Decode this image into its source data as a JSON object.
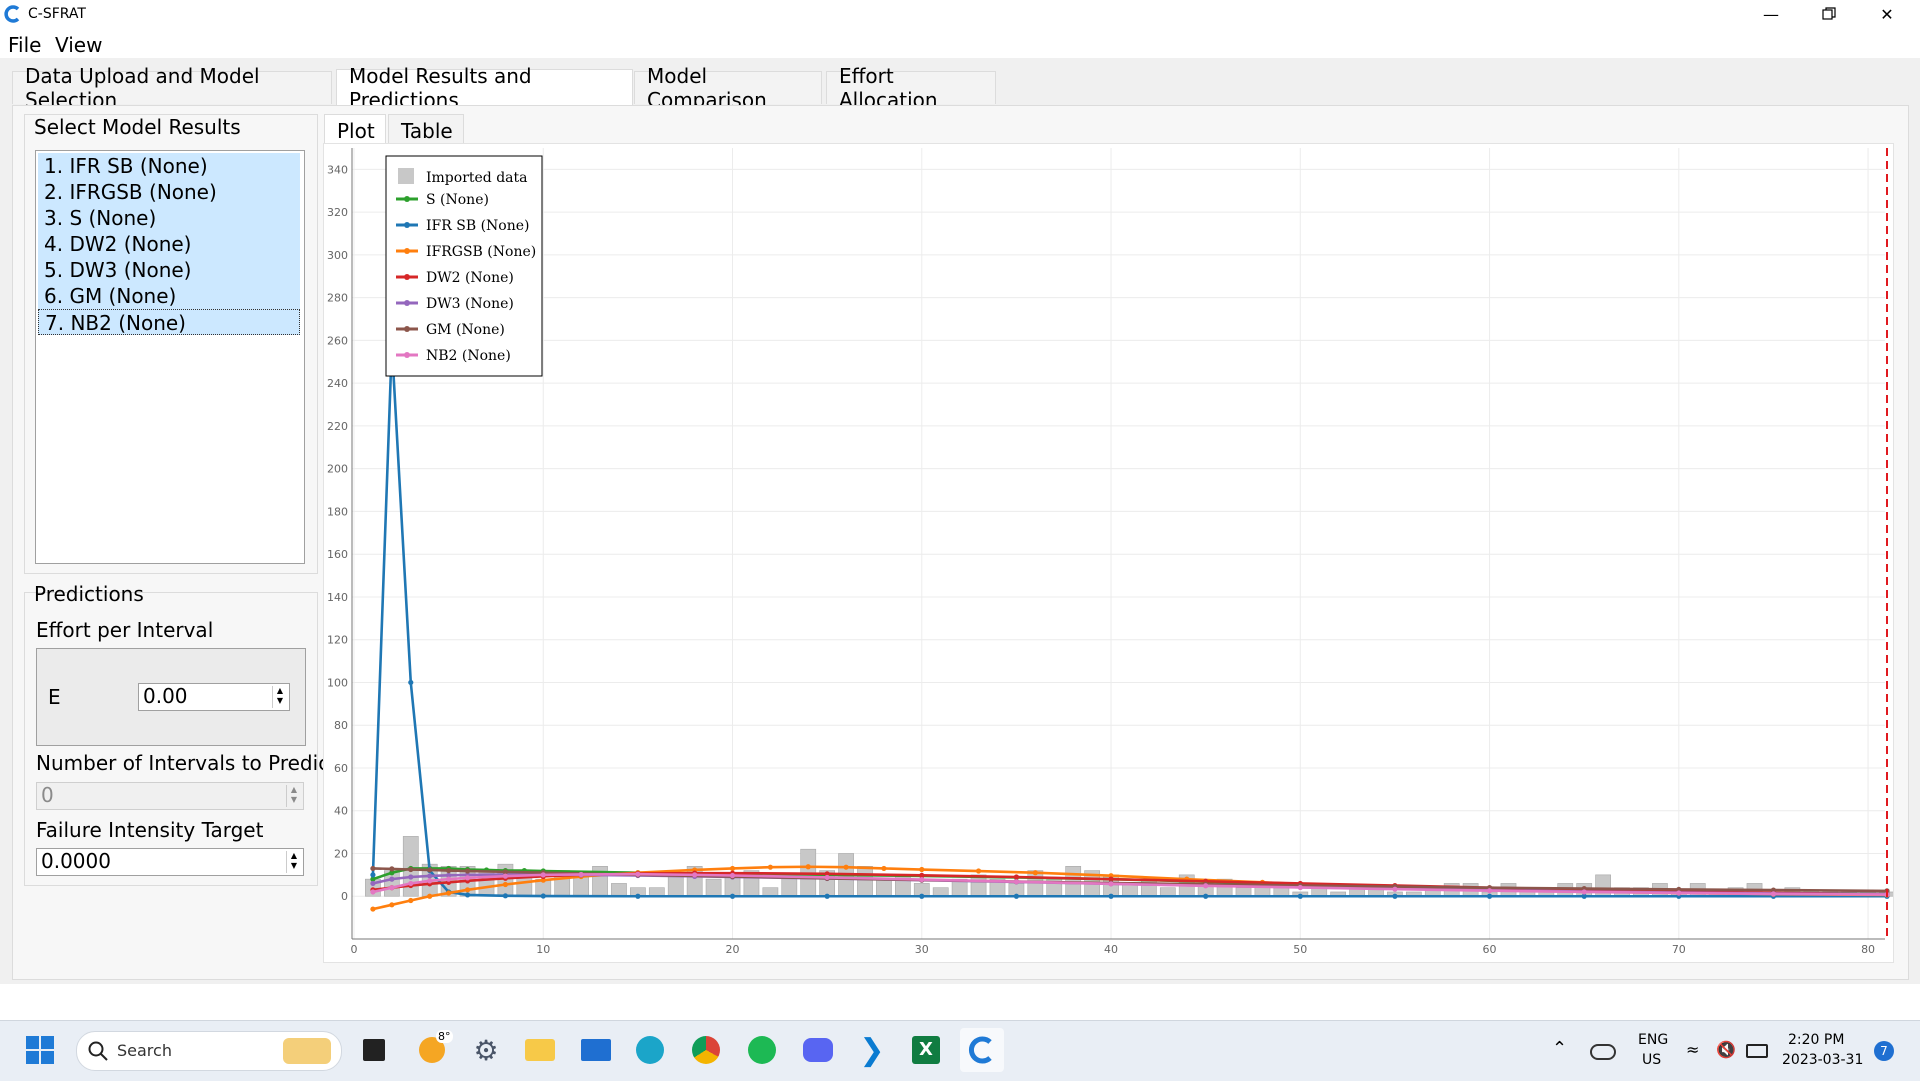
{
  "window": {
    "title": "C-SFRAT",
    "controls": [
      "minimize-icon",
      "restore-icon",
      "close-icon"
    ]
  },
  "menu": [
    "File",
    "View"
  ],
  "main_tabs": [
    {
      "label": "Data Upload and Model Selection",
      "active": false
    },
    {
      "label": "Model Results and Predictions",
      "active": true
    },
    {
      "label": "Model Comparison",
      "active": false
    },
    {
      "label": "Effort Allocation",
      "active": false
    }
  ],
  "select_model_results": {
    "title": "Select Model Results",
    "items": [
      "1. IFR SB (None)",
      "2. IFRGSB (None)",
      "3. S (None)",
      "4. DW2 (None)",
      "5. DW3 (None)",
      "6. GM (None)",
      "7. NB2 (None)"
    ]
  },
  "predictions": {
    "title": "Predictions",
    "effort_label": "Effort per Interval",
    "e_label": "E",
    "e_value": "0.00",
    "intervals_label": "Number of Intervals to Predict",
    "intervals_value": "0",
    "intensity_label": "Failure Intensity Target",
    "intensity_value": "0.0000"
  },
  "sub_tabs": [
    {
      "label": "Plot",
      "active": true
    },
    {
      "label": "Table",
      "active": false
    }
  ],
  "chart_data": {
    "type": "line",
    "xlim": [
      0,
      81
    ],
    "ylim": [
      -20,
      350
    ],
    "x_ticks": [
      0,
      10,
      20,
      30,
      40,
      50,
      60,
      70,
      80
    ],
    "y_ticks": [
      0,
      20,
      40,
      60,
      80,
      100,
      120,
      140,
      160,
      180,
      200,
      220,
      240,
      260,
      280,
      300,
      320,
      340
    ],
    "grid": true,
    "legend_position": "top-left",
    "vertical_marker_x": 81,
    "bars": {
      "name": "Imported data",
      "color": "#c8c8c8",
      "x": [
        1,
        2,
        3,
        4,
        5,
        6,
        7,
        8,
        9,
        10,
        11,
        12,
        13,
        14,
        15,
        16,
        17,
        18,
        19,
        20,
        21,
        22,
        23,
        24,
        25,
        26,
        27,
        28,
        29,
        30,
        31,
        32,
        33,
        34,
        35,
        36,
        37,
        38,
        39,
        40,
        41,
        42,
        43,
        44,
        45,
        46,
        47,
        48,
        49,
        50,
        51,
        52,
        53,
        54,
        55,
        56,
        57,
        58,
        59,
        60,
        61,
        62,
        63,
        64,
        65,
        66,
        67,
        68,
        69,
        70,
        71,
        72,
        73,
        74,
        75,
        76,
        77,
        78,
        79,
        80,
        81
      ],
      "values": [
        8,
        12,
        28,
        15,
        14,
        14,
        12,
        15,
        10,
        8,
        12,
        10,
        14,
        6,
        4,
        4,
        10,
        14,
        8,
        10,
        12,
        4,
        10,
        22,
        12,
        20,
        14,
        8,
        10,
        6,
        4,
        8,
        10,
        8,
        6,
        12,
        8,
        14,
        12,
        10,
        6,
        8,
        4,
        10,
        6,
        8,
        4,
        4,
        6,
        2,
        4,
        2,
        4,
        4,
        2,
        2,
        4,
        6,
        6,
        2,
        6,
        4,
        2,
        6,
        6,
        10,
        4,
        4,
        6,
        2,
        6,
        2,
        4,
        6,
        2,
        4,
        2,
        2,
        2,
        2,
        2
      ]
    },
    "series": [
      {
        "name": "S (None)",
        "color": "#2ca02c",
        "x": [
          1,
          2,
          3,
          4,
          5,
          6,
          7,
          8,
          9,
          10,
          15,
          20,
          25,
          30,
          35,
          40,
          45,
          50,
          55,
          60,
          65,
          70,
          75,
          81
        ],
        "y": [
          8,
          11,
          13,
          13,
          13,
          12.5,
          12.3,
          12,
          12,
          11.8,
          11,
          10.5,
          10,
          9.5,
          8.8,
          8,
          6.8,
          5.6,
          4.5,
          3.4,
          2.6,
          2,
          1.5,
          1.2
        ]
      },
      {
        "name": "IFR SB (None)",
        "color": "#1f77b4",
        "x": [
          1,
          2,
          3,
          4,
          5,
          6,
          8,
          10,
          15,
          20,
          25,
          30,
          35,
          40,
          45,
          50,
          55,
          60,
          65,
          70,
          75,
          81
        ],
        "y": [
          10,
          258,
          100,
          12,
          2,
          0.6,
          0.2,
          0.1,
          0,
          0,
          0,
          0,
          0,
          0,
          0,
          0,
          0,
          0,
          0,
          0,
          0,
          0
        ]
      },
      {
        "name": "IFRGSB (None)",
        "color": "#ff7f0e",
        "x": [
          1,
          2,
          3,
          4,
          5,
          6,
          8,
          10,
          12,
          15,
          18,
          20,
          22,
          24,
          26,
          28,
          30,
          33,
          36,
          40,
          44,
          48,
          52,
          56,
          60,
          65,
          70,
          75,
          81
        ],
        "y": [
          -6,
          -4,
          -2,
          0,
          1.5,
          3,
          5.5,
          7.5,
          9.2,
          11,
          12.3,
          13,
          13.6,
          13.8,
          13.6,
          13,
          12.5,
          11.8,
          11,
          9.6,
          8,
          6.5,
          5,
          4,
          3,
          2.2,
          1.5,
          1,
          0.6
        ]
      },
      {
        "name": "DW2 (None)",
        "color": "#d62728",
        "x": [
          1,
          2,
          3,
          4,
          5,
          6,
          8,
          10,
          12,
          15,
          18,
          20,
          25,
          30,
          35,
          40,
          45,
          50,
          55,
          60,
          65,
          70,
          75,
          81
        ],
        "y": [
          3,
          4,
          5,
          5.8,
          6.5,
          7.2,
          8.4,
          9.3,
          10,
          10.6,
          10.8,
          10.8,
          10.5,
          9.8,
          9,
          8,
          7,
          6,
          5,
          4,
          3,
          2.2,
          1.6,
          1
        ]
      },
      {
        "name": "DW3 (None)",
        "color": "#9467bd",
        "x": [
          1,
          2,
          3,
          4,
          5,
          6,
          8,
          10,
          12,
          15,
          18,
          20,
          25,
          30,
          35,
          40,
          45,
          50,
          55,
          60,
          65,
          70,
          75,
          81
        ],
        "y": [
          6,
          8,
          9,
          9.5,
          9.8,
          10,
          10.2,
          10.2,
          10,
          9.7,
          9.3,
          9,
          8.3,
          7.5,
          6.7,
          5.8,
          5,
          4.2,
          3.5,
          2.8,
          2.2,
          1.7,
          1.3,
          1
        ]
      },
      {
        "name": "GM (None)",
        "color": "#8c564b",
        "x": [
          1,
          2,
          3,
          4,
          5,
          6,
          8,
          10,
          15,
          20,
          25,
          30,
          35,
          40,
          45,
          50,
          55,
          60,
          65,
          70,
          75,
          81
        ],
        "y": [
          13,
          12.8,
          12.5,
          12.3,
          12,
          11.8,
          11.4,
          11,
          10,
          9.2,
          8.4,
          7.6,
          6.9,
          6.2,
          5.6,
          5,
          4.5,
          4,
          3.6,
          3.2,
          2.9,
          2.5
        ]
      },
      {
        "name": "NB2 (None)",
        "color": "#e377c2",
        "x": [
          1,
          2,
          3,
          4,
          5,
          6,
          8,
          10,
          12,
          15,
          18,
          20,
          25,
          30,
          35,
          40,
          45,
          50,
          55,
          60,
          65,
          70,
          75,
          81
        ],
        "y": [
          2,
          4,
          6,
          7.2,
          8,
          8.6,
          9.4,
          10,
          10.2,
          10.3,
          10,
          9.7,
          8.8,
          7.8,
          6.8,
          5.8,
          4.9,
          4.1,
          3.3,
          2.6,
          2,
          1.5,
          1.1,
          0.8
        ]
      }
    ]
  },
  "taskbar": {
    "search_placeholder": "Search",
    "weather_temp": "8°",
    "lang_top": "ENG",
    "lang_bottom": "US",
    "time": "2:20 PM",
    "date": "2023-03-31",
    "notification_count": "7",
    "pinned": [
      "start-icon",
      "search-icon",
      "task-view-icon",
      "weather-icon",
      "settings-icon",
      "file-explorer-icon",
      "mail-icon",
      "edge-icon",
      "chrome-icon",
      "spotify-icon",
      "discord-icon",
      "vscode-icon",
      "excel-icon",
      "c-sfrat-icon"
    ]
  }
}
